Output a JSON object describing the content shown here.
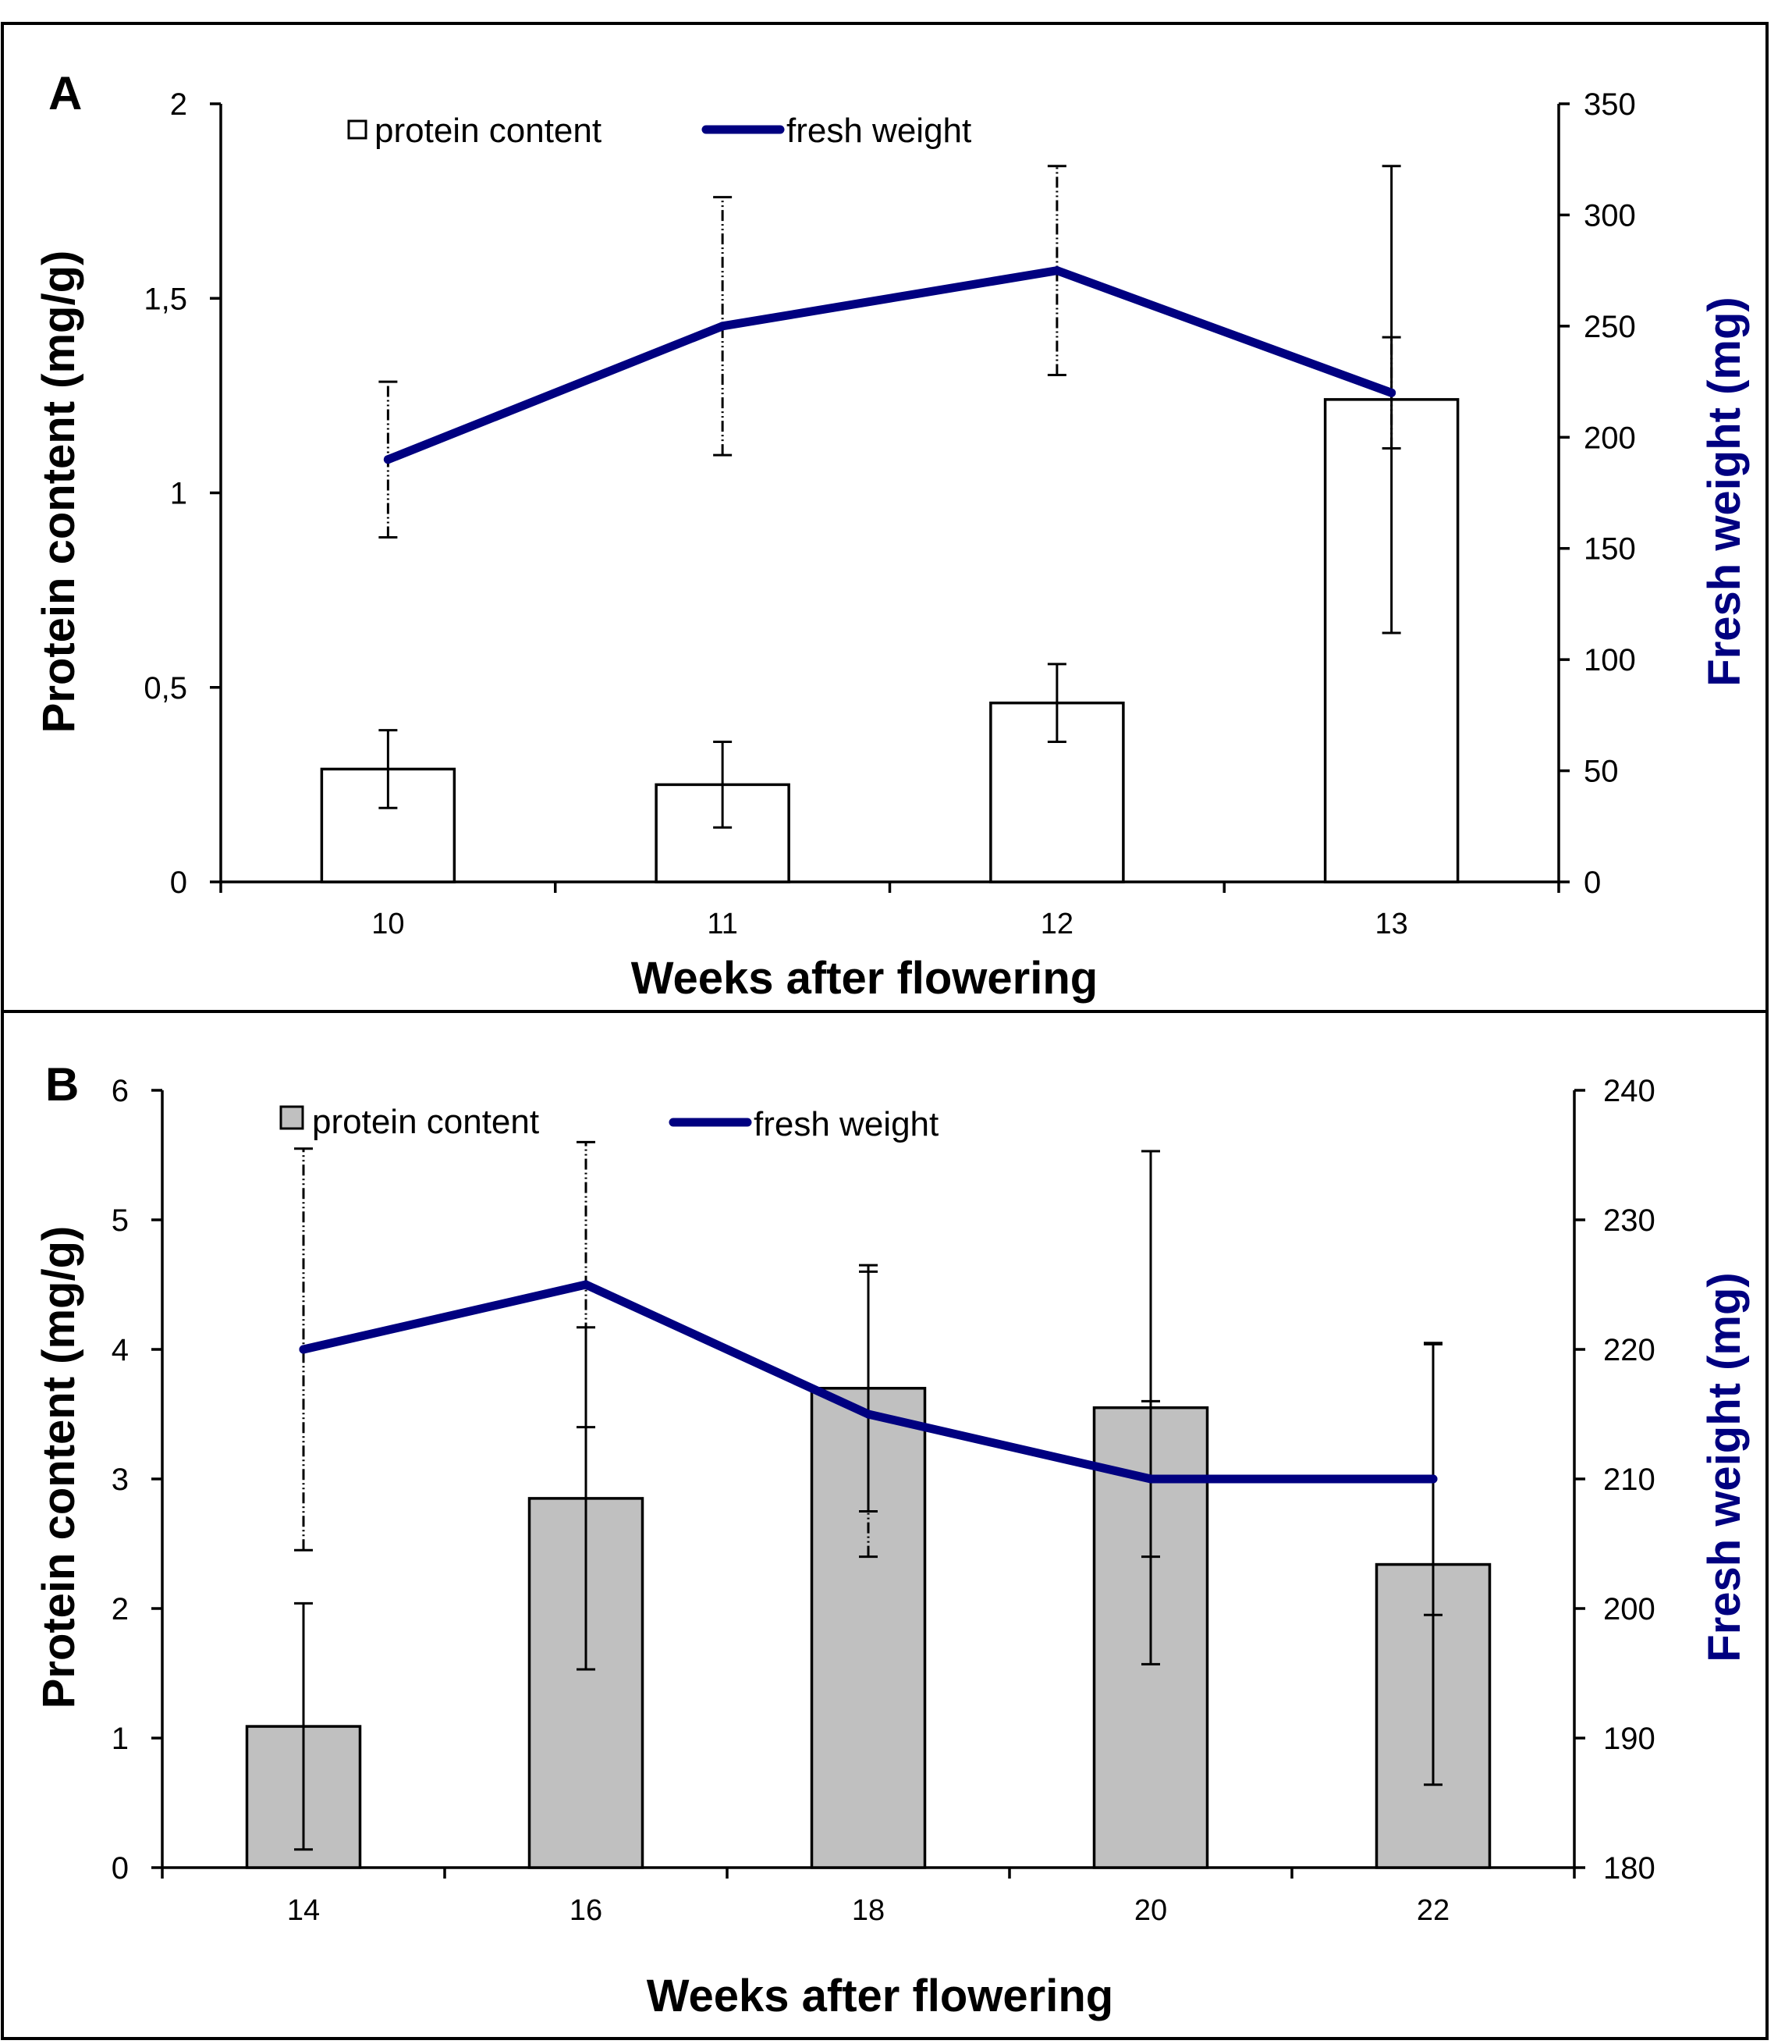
{
  "chart_data": [
    {
      "panel": "A",
      "type": "bar+line",
      "categories": [
        "10",
        "11",
        "12",
        "13"
      ],
      "xlabel": "Weeks after flowering",
      "ylabel_left": "Protein content  (mg/g)",
      "ylabel_right": "Fresh weight  (mg)",
      "ylim_left": [
        0,
        2
      ],
      "yticks_left": [
        0,
        0.5,
        1,
        1.5,
        2
      ],
      "yticks_left_labels": [
        "0",
        "0,5",
        "1",
        "1,5",
        "2"
      ],
      "ylim_right": [
        0,
        350
      ],
      "yticks_right": [
        0,
        50,
        100,
        150,
        200,
        250,
        300,
        350
      ],
      "yticks_right_labels": [
        "0",
        "50",
        "100",
        "150",
        "200",
        "250",
        "300",
        "350"
      ],
      "series": [
        {
          "name": "protein content",
          "kind": "bar",
          "axis": "left",
          "values": [
            0.29,
            0.25,
            0.46,
            1.24
          ],
          "errors": [
            0.1,
            0.11,
            0.1,
            0.6
          ]
        },
        {
          "name": "fresh weight",
          "kind": "line",
          "axis": "right",
          "values": [
            190,
            250,
            275,
            220
          ],
          "errors": [
            35,
            58,
            47,
            25
          ]
        }
      ],
      "legend_placement": "top-center",
      "colors": {
        "bar_fill": "#ffffff",
        "line": "#000080",
        "right_axis_title": "#000080"
      }
    },
    {
      "panel": "B",
      "type": "bar+line",
      "categories": [
        "14",
        "16",
        "18",
        "20",
        "22"
      ],
      "xlabel": "Weeks after flowering",
      "ylabel_left": "Protein content  (mg/g)",
      "ylabel_right": "Fresh weight  (mg)",
      "ylim_left": [
        0,
        6
      ],
      "yticks_left": [
        0,
        1,
        2,
        3,
        4,
        5,
        6
      ],
      "yticks_left_labels": [
        "0",
        "1",
        "2",
        "3",
        "4",
        "5",
        "6"
      ],
      "ylim_right": [
        180,
        240
      ],
      "yticks_right": [
        180,
        190,
        200,
        210,
        220,
        230,
        240
      ],
      "yticks_right_labels": [
        "180",
        "190",
        "200",
        "210",
        "220",
        "230",
        "240"
      ],
      "series": [
        {
          "name": "protein content",
          "kind": "bar",
          "axis": "left",
          "values": [
            1.09,
            2.85,
            3.7,
            3.55,
            2.34
          ],
          "errors": [
            0.95,
            1.32,
            0.95,
            1.98,
            1.7
          ]
        },
        {
          "name": "fresh weight",
          "kind": "line",
          "axis": "right",
          "values": [
            220,
            225,
            215,
            210,
            210
          ],
          "errors": [
            15.5,
            11,
            11,
            6,
            10.5
          ]
        }
      ],
      "legend_placement": "top-center",
      "colors": {
        "bar_fill": "#c0c0c0",
        "line": "#000080",
        "right_axis_title": "#000080"
      }
    }
  ]
}
